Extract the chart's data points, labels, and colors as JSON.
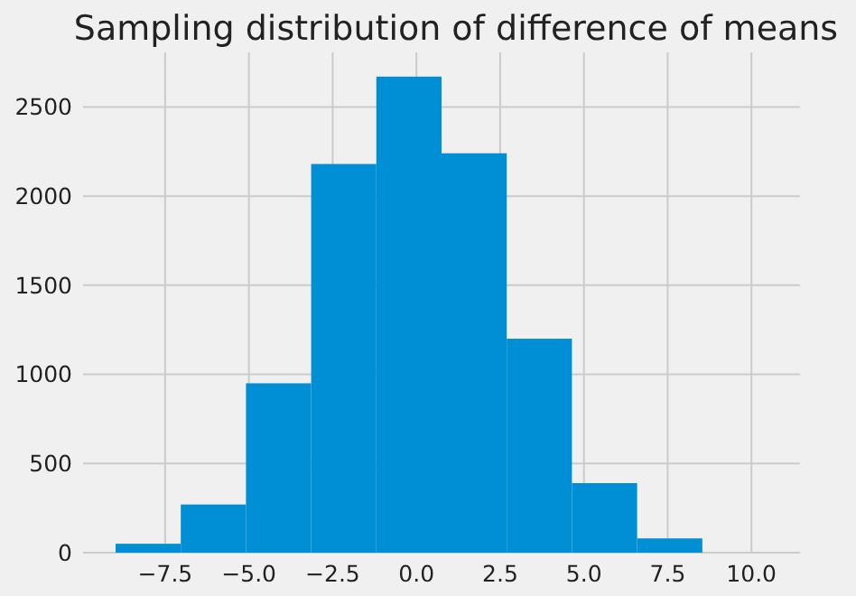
{
  "chart_data": {
    "type": "histogram",
    "title": "Sampling distribution of difference of means",
    "bins": [
      -8.98,
      -7.034,
      -5.088,
      -3.142,
      -1.196,
      0.75,
      2.696,
      4.642,
      6.588,
      8.534
    ],
    "values": [
      50,
      270,
      950,
      2180,
      2670,
      2240,
      1200,
      390,
      80
    ],
    "color": "#008fd5",
    "xlim": [
      -9.95,
      11.45
    ],
    "xticks": [
      {
        "value": -7.5,
        "label": "−7.5"
      },
      {
        "value": -5,
        "label": "−5.0"
      },
      {
        "value": -2.5,
        "label": "−2.5"
      },
      {
        "value": 0,
        "label": "0.0"
      },
      {
        "value": 2.5,
        "label": "2.5"
      },
      {
        "value": 5,
        "label": "5.0"
      },
      {
        "value": 7.5,
        "label": "7.5"
      },
      {
        "value": 10,
        "label": "10.0"
      }
    ],
    "ylim": [
      0,
      2806
    ],
    "yticks": [
      0,
      500,
      1000,
      1500,
      2000,
      2500
    ],
    "grid": true
  }
}
